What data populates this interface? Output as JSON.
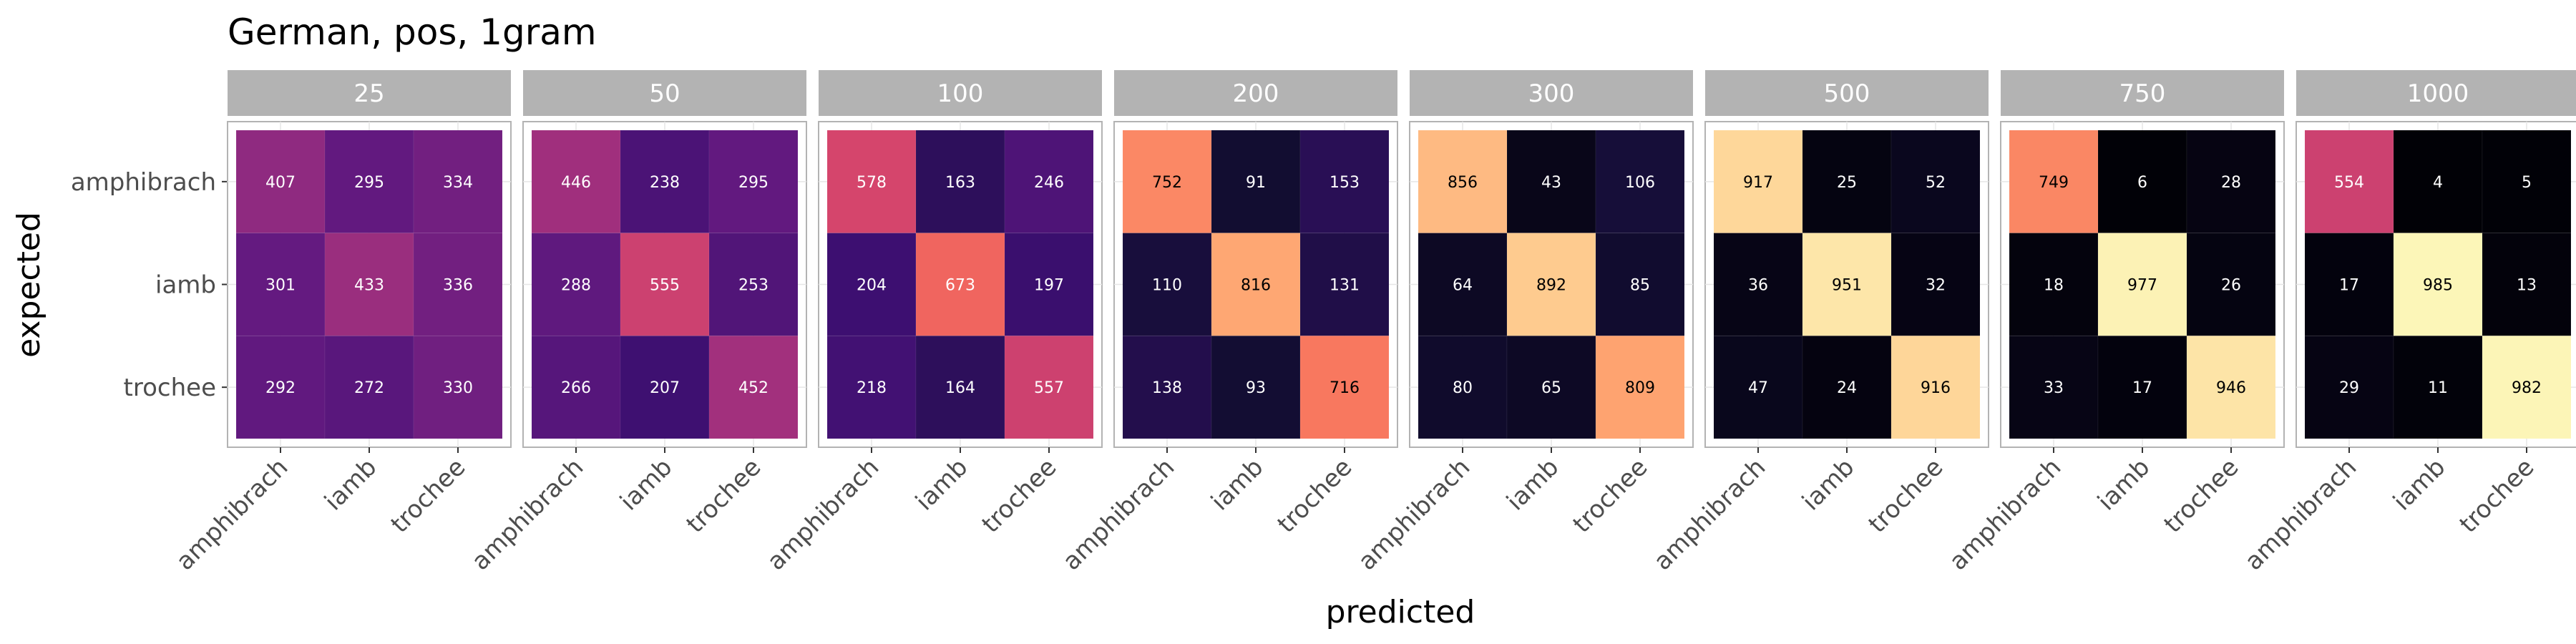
{
  "chart_data": {
    "type": "heatmap",
    "title": "German, pos, 1gram",
    "xlabel": "predicted",
    "ylabel": "expected",
    "categories": [
      "amphibrach",
      "iamb",
      "trochee"
    ],
    "color_scale": "magma",
    "value_range": [
      0,
      1000
    ],
    "grid": true,
    "legend": "none",
    "facets": [
      {
        "label": "25",
        "values": [
          [
            407,
            295,
            334
          ],
          [
            301,
            433,
            336
          ],
          [
            292,
            272,
            330
          ]
        ]
      },
      {
        "label": "50",
        "values": [
          [
            446,
            238,
            295
          ],
          [
            288,
            555,
            253
          ],
          [
            266,
            207,
            452
          ]
        ]
      },
      {
        "label": "100",
        "values": [
          [
            578,
            163,
            246
          ],
          [
            204,
            673,
            197
          ],
          [
            218,
            164,
            557
          ]
        ]
      },
      {
        "label": "200",
        "values": [
          [
            752,
            91,
            153
          ],
          [
            110,
            816,
            131
          ],
          [
            138,
            93,
            716
          ]
        ]
      },
      {
        "label": "300",
        "values": [
          [
            856,
            43,
            106
          ],
          [
            64,
            892,
            85
          ],
          [
            80,
            65,
            809
          ]
        ]
      },
      {
        "label": "500",
        "values": [
          [
            917,
            25,
            52
          ],
          [
            36,
            951,
            32
          ],
          [
            47,
            24,
            916
          ]
        ]
      },
      {
        "label": "750",
        "values": [
          [
            749,
            6,
            28
          ],
          [
            18,
            977,
            26
          ],
          [
            33,
            17,
            946
          ]
        ]
      },
      {
        "label": "1000",
        "values": [
          [
            554,
            4,
            5
          ],
          [
            17,
            985,
            13
          ],
          [
            29,
            11,
            982
          ]
        ]
      }
    ]
  }
}
